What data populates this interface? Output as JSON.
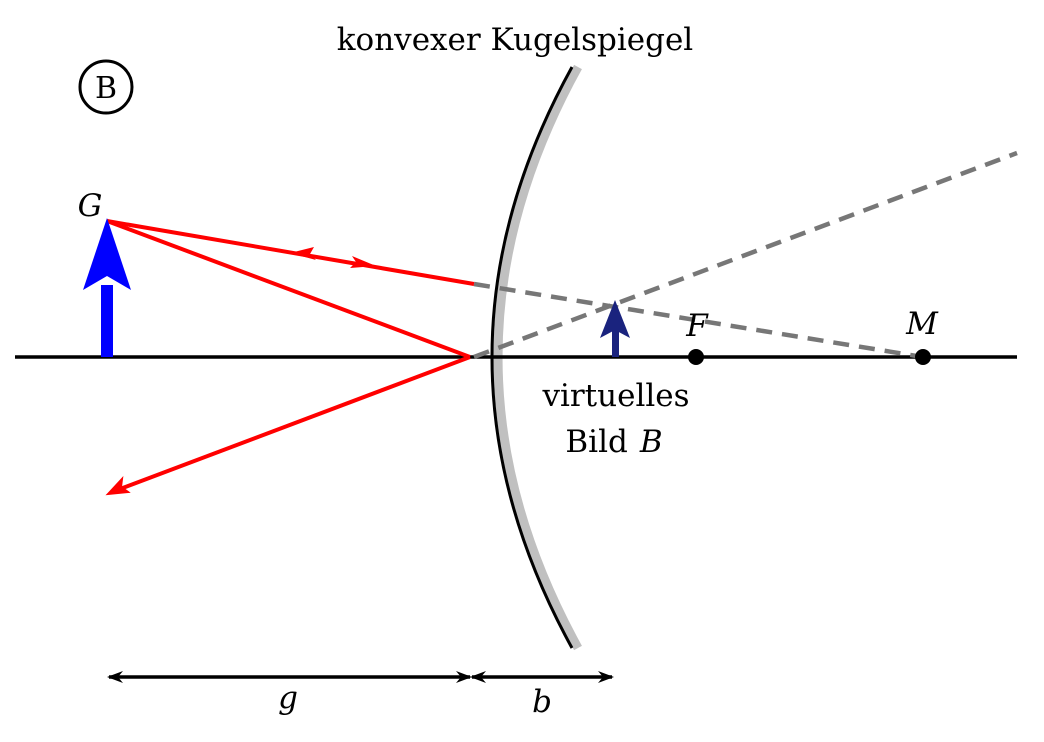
{
  "title": "konvexer Kugelspiegel",
  "panel_marker": "B",
  "labels": {
    "object": "G",
    "focus": "F",
    "center": "M",
    "image_line1": "virtuelles",
    "image_line2_word": "Bild",
    "image_line2_symbol": "B",
    "object_distance": "g",
    "image_distance": "b"
  },
  "colors": {
    "object_arrow": "#0000ff",
    "image_arrow": "#1a237e",
    "rays": "#ff0000",
    "construction_lines": "#7a7a7a",
    "mirror_line": "#000000",
    "mirror_backing": "#c0c0c0"
  }
}
